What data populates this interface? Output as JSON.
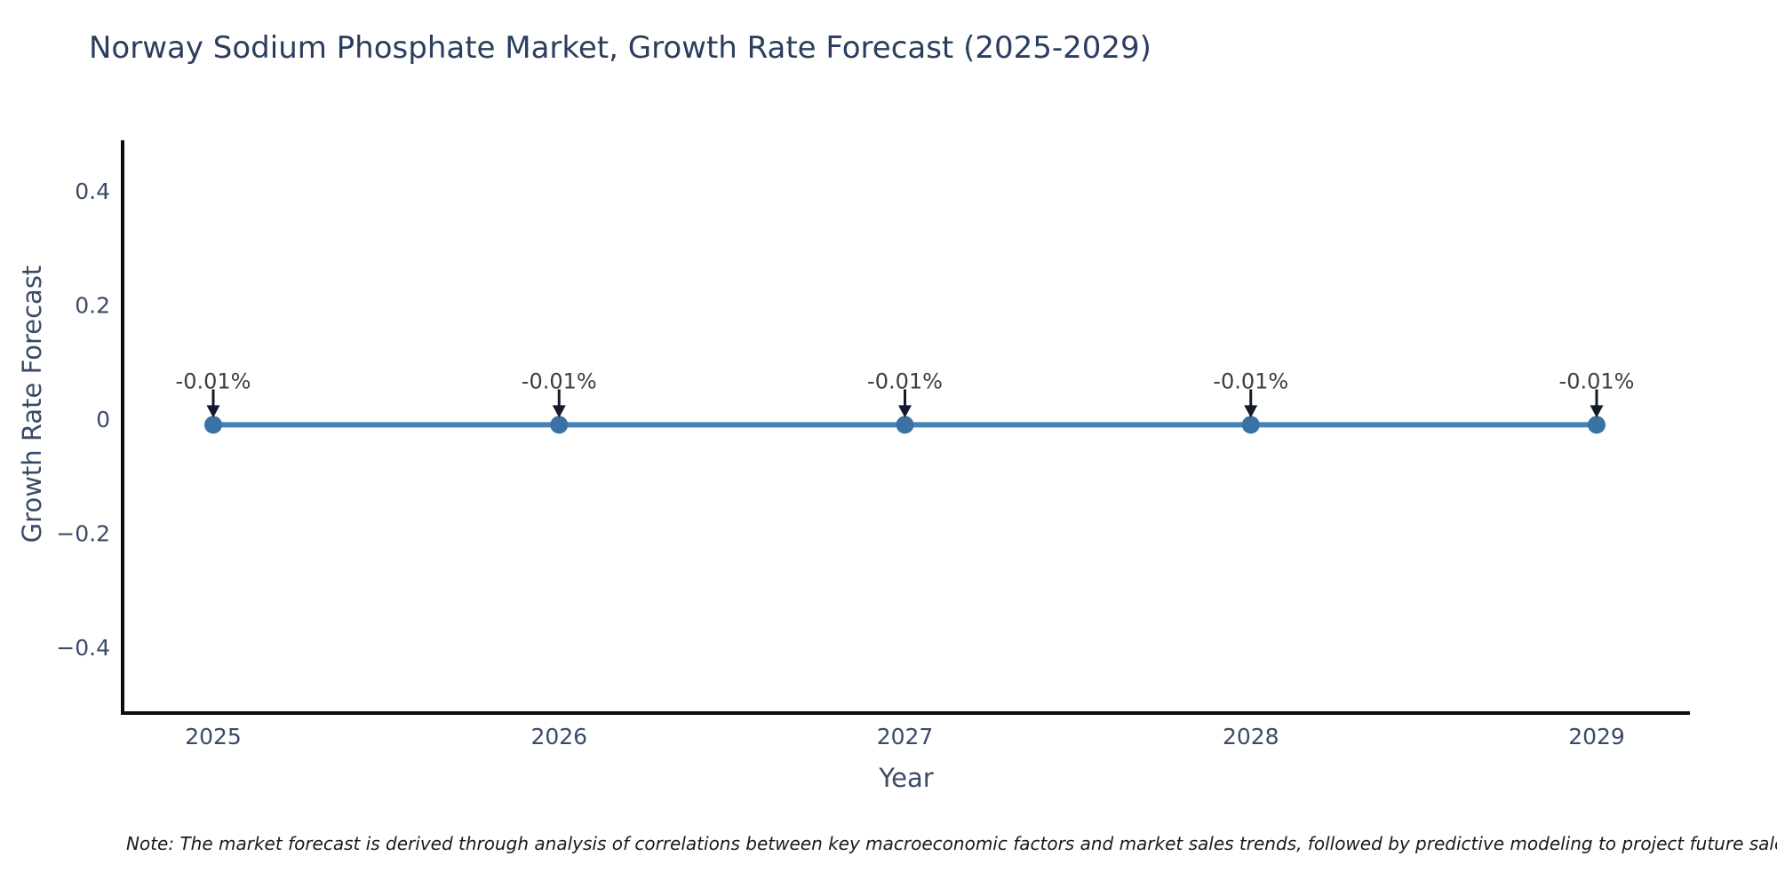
{
  "chart_data": {
    "type": "line",
    "title": "Norway Sodium Phosphate Market, Growth Rate Forecast (2025-2029)",
    "xlabel": "Year",
    "ylabel": "Growth Rate Forecast",
    "categories": [
      "2025",
      "2026",
      "2027",
      "2028",
      "2029"
    ],
    "values": [
      -0.01,
      -0.01,
      -0.01,
      -0.01,
      -0.01
    ],
    "point_labels": [
      "-0.01%",
      "-0.01%",
      "-0.01%",
      "-0.01%",
      "-0.01%"
    ],
    "y_ticks": [
      0.4,
      0.2,
      0,
      -0.2,
      -0.4
    ],
    "y_tick_labels": [
      "0.4",
      "0.2",
      "0",
      "−0.2",
      "−0.4"
    ],
    "ylim": [
      -0.51,
      0.49
    ],
    "grid": false,
    "legend": null,
    "colors": {
      "line": "#4682b4",
      "marker": "#3a72a4",
      "annotation_arrow": "#15192d",
      "annotation_text": "#3d3d3d",
      "axis_spine": "#0d0d0d",
      "tick_label": "#3b4a66",
      "title": "#2b3e5e"
    }
  },
  "note": {
    "text": "Note: The market forecast is derived through analysis of correlations between key macroeconomic factors and market sales trends, followed by predictive modeling to project future sales."
  }
}
